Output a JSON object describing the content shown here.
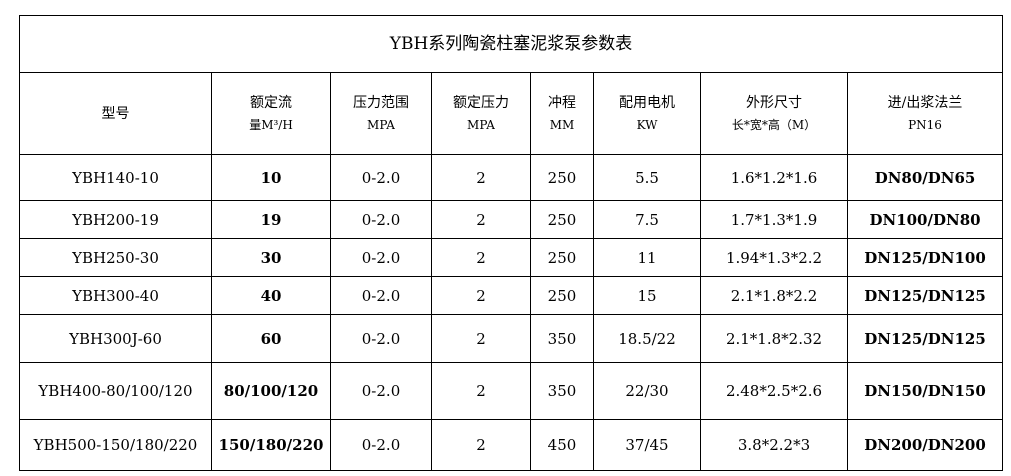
{
  "title": "YBH系列陶瓷柱塞泥浆泵参数表",
  "headers": [
    {
      "line1": "型号",
      "line2": ""
    },
    {
      "line1": "额定流",
      "line2": "量M³/H"
    },
    {
      "line1": "压力范围",
      "line2": "MPA"
    },
    {
      "line1": "额定压力",
      "line2": "MPA"
    },
    {
      "line1": "冲程",
      "line2": "MM"
    },
    {
      "line1": "配用电机",
      "line2": "KW"
    },
    {
      "line1": "外形尺寸",
      "line2": "长*宽*高（M）"
    },
    {
      "line1": "进/出浆法兰",
      "line2": "PN16"
    }
  ],
  "rows": [
    [
      "YBH140-10",
      "10",
      "0-2.0",
      "2",
      "250",
      "5.5",
      "1.6*1.2*1.6",
      "DN80/DN65"
    ],
    [
      "YBH200-19",
      "19",
      "0-2.0",
      "2",
      "250",
      "7.5",
      "1.7*1.3*1.9",
      "DN100/DN80"
    ],
    [
      "YBH250-30",
      "30",
      "0-2.0",
      "2",
      "250",
      "11",
      "1.94*1.3*2.2",
      "DN125/DN100"
    ],
    [
      "YBH300-40",
      "40",
      "0-2.0",
      "2",
      "250",
      "15",
      "2.1*1.8*2.2",
      "DN125/DN125"
    ],
    [
      "YBH300J-60",
      "60",
      "0-2.0",
      "2",
      "350",
      "18.5/22",
      "2.1*1.8*2.32",
      "DN125/DN125"
    ],
    [
      "YBH400-80/100/120",
      "80/100/120",
      "0-2.0",
      "2",
      "350",
      "22/30",
      "2.48*2.5*2.6",
      "DN150/DN150"
    ],
    [
      "YBH500-150/180/220",
      "150/180/220",
      "0-2.0",
      "2",
      "450",
      "37/45",
      "3.8*2.2*3",
      "DN200/DN200"
    ]
  ]
}
